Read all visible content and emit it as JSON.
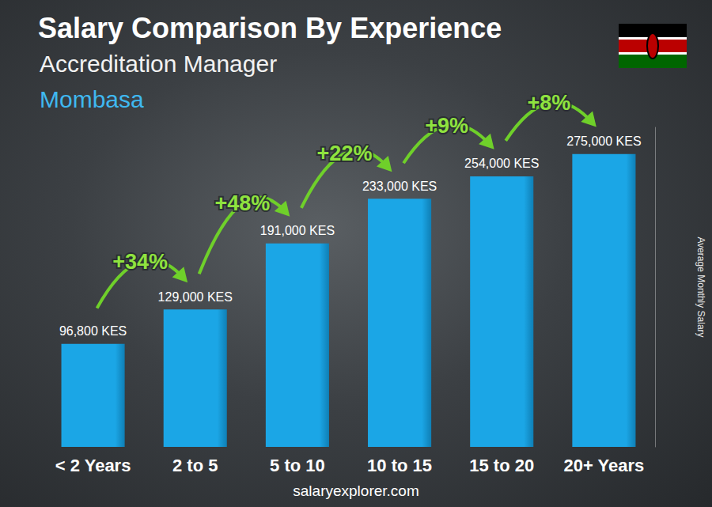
{
  "chart_data": {
    "type": "bar",
    "title": "Salary Comparison By Experience",
    "subtitle": "Accreditation Manager",
    "location": "Mombasa",
    "categories": [
      "< 2 Years",
      "2 to 5",
      "5 to 10",
      "10 to 15",
      "15 to 20",
      "20+ Years"
    ],
    "values": [
      96800,
      129000,
      191000,
      233000,
      254000,
      275000
    ],
    "value_labels": [
      "96,800 KES",
      "129,000 KES",
      "191,000 KES",
      "233,000 KES",
      "254,000 KES",
      "275,000 KES"
    ],
    "annotations": [
      "+34%",
      "+48%",
      "+22%",
      "+9%",
      "+8%"
    ],
    "y_label": "Average Monthly Salary",
    "source": "salaryexplorer.com",
    "color": "#1ba6e6",
    "ylim": [
      0,
      300000
    ],
    "grid": false,
    "data_labels": true,
    "tick_labels": "x"
  }
}
